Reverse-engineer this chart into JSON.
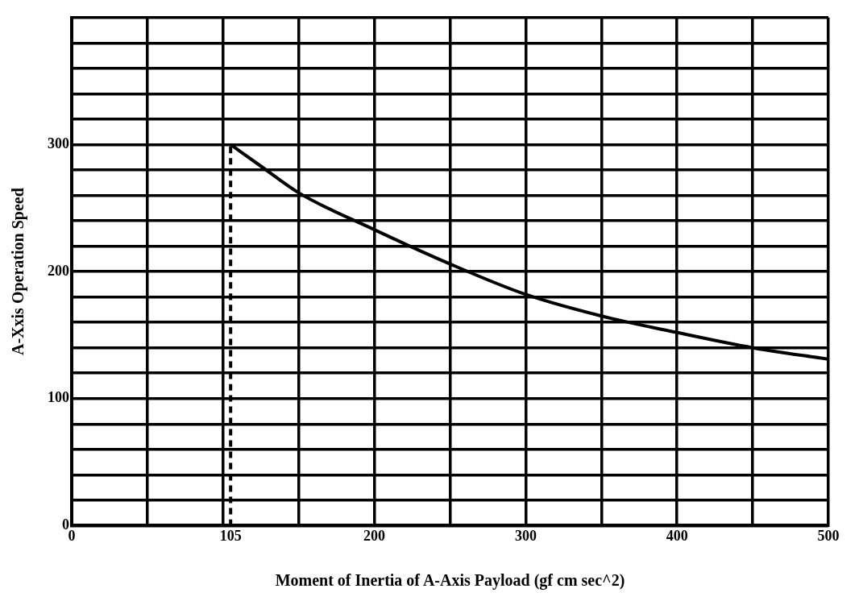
{
  "chart_data": {
    "type": "line",
    "xlabel": "Moment of Inertia of A-Axis Payload (gf cm sec^2)",
    "ylabel": "A-Xxis Operation Speed",
    "xlim": [
      0,
      500
    ],
    "ylim": [
      0,
      400
    ],
    "xticks": [
      0,
      {
        "value": 50,
        "label": null
      },
      {
        "value": 100,
        "label": null
      },
      105,
      {
        "value": 150,
        "label": null
      },
      200,
      {
        "value": 250,
        "label": null
      },
      300,
      {
        "value": 350,
        "label": null
      },
      400,
      {
        "value": 450,
        "label": null
      },
      500
    ],
    "yticks": [
      0,
      {
        "value": 20,
        "label": null
      },
      {
        "value": 40,
        "label": null
      },
      {
        "value": 60,
        "label": null
      },
      {
        "value": 80,
        "label": null
      },
      100,
      {
        "value": 120,
        "label": null
      },
      {
        "value": 140,
        "label": null
      },
      {
        "value": 160,
        "label": null
      },
      {
        "value": 180,
        "label": null
      },
      200,
      {
        "value": 220,
        "label": null
      },
      {
        "value": 240,
        "label": null
      },
      {
        "value": 260,
        "label": null
      },
      {
        "value": 280,
        "label": null
      },
      300,
      {
        "value": 320,
        "label": null
      },
      {
        "value": 340,
        "label": null
      },
      {
        "value": 360,
        "label": null
      },
      {
        "value": 380,
        "label": null
      },
      {
        "value": 400,
        "label": null
      }
    ],
    "grid": true,
    "legend": false,
    "marker": "none",
    "series": [
      {
        "color": "#000000",
        "x": [
          105,
          125,
          150,
          200,
          250,
          300,
          350,
          400,
          450,
          500
        ],
        "values": [
          300,
          283,
          262,
          233,
          206,
          182,
          165,
          152,
          140,
          131
        ]
      },
      {
        "color": "#000000",
        "line_style": "dashed",
        "x": [
          105,
          105
        ],
        "values": [
          0,
          300
        ]
      }
    ]
  }
}
